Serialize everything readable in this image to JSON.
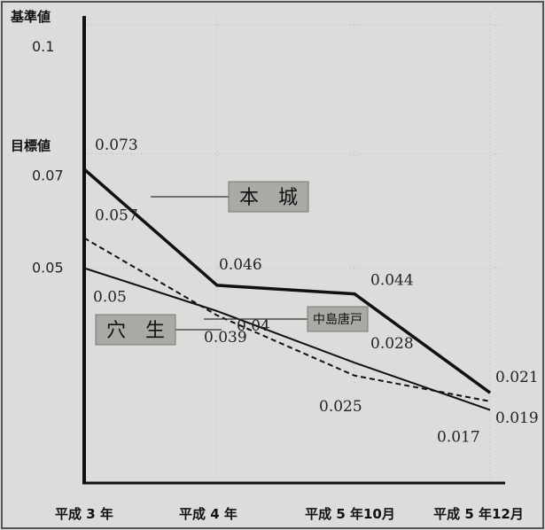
{
  "chart_data": {
    "type": "line",
    "categories": [
      "平成 3 年",
      "平成 4 年",
      "平成 5 年10月",
      "平成 5 年12月"
    ],
    "y_ticks": [
      {
        "value": 0.1,
        "header": "基準値",
        "label": "0.1"
      },
      {
        "value": 0.07,
        "header": "目標値",
        "label": "0.07"
      },
      {
        "value": 0.05,
        "header": "",
        "label": "0.05"
      }
    ],
    "ylim": [
      0.0,
      0.1
    ],
    "grid": true,
    "series": [
      {
        "name": "本　城",
        "values": [
          0.073,
          0.046,
          0.044,
          0.021
        ],
        "labels": [
          "0.073",
          "0.046",
          "0.044",
          "0.021"
        ],
        "style": "thick"
      },
      {
        "name": "中島唐戸",
        "values": [
          0.057,
          0.039,
          0.025,
          0.019
        ],
        "labels": [
          "0.057",
          "0.039",
          "0.025",
          "0.019"
        ],
        "style": "dashed"
      },
      {
        "name": "穴　生",
        "values": [
          0.05,
          0.04,
          0.028,
          0.017
        ],
        "labels": [
          "0.05",
          "0.04",
          "0.028",
          "0.017"
        ],
        "style": "thin"
      }
    ],
    "colors": {
      "background": "#dcdcda",
      "line": "#111111",
      "grid": "#bdbdbd",
      "label_box": "#a9a9a6"
    }
  }
}
